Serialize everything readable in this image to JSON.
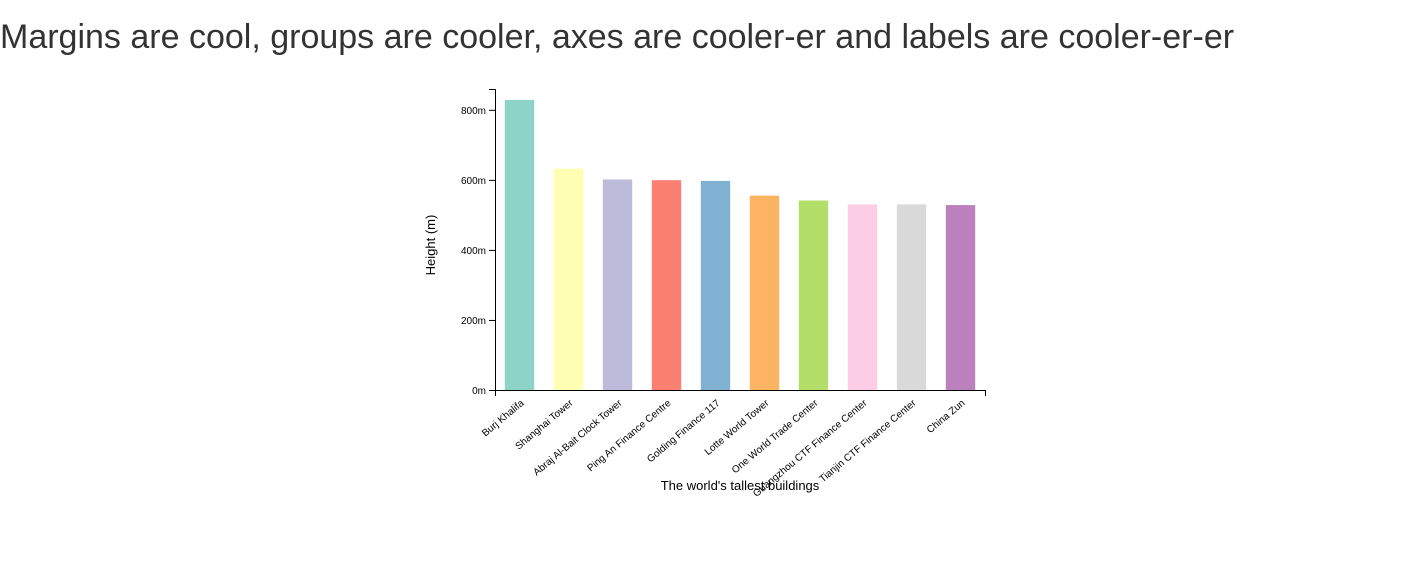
{
  "page": {
    "title": "Margins are cool, groups are cooler, axes are cooler-er and labels are cooler-er-er"
  },
  "chart_data": {
    "type": "bar",
    "categories": [
      "Burj Khalifa",
      "Shanghai Tower",
      "Abraj Al-Bait Clock Tower",
      "Ping An Finance Centre",
      "Golding Finance 117",
      "Lotte World Tower",
      "One World Trade Center",
      "Guangzhou CTF Finance Center",
      "Tianjin CTF Finance Center",
      "China Zun"
    ],
    "values": [
      828,
      632,
      601,
      599,
      597,
      555,
      541,
      530,
      530,
      528
    ],
    "colors": [
      "#8dd3c7",
      "#ffffb3",
      "#bebada",
      "#fb8072",
      "#80b1d3",
      "#fdb462",
      "#b3de69",
      "#fccde5",
      "#d9d9d9",
      "#bc80bd"
    ],
    "xlabel": "The world's tallest buildings",
    "ylabel": "Height (m)",
    "ylim": [
      0,
      828
    ],
    "yticks": [
      0,
      200,
      400,
      600,
      800
    ],
    "ytick_labels": [
      "0m",
      "200m",
      "400m",
      "600m",
      "800m"
    ],
    "grid": false
  }
}
